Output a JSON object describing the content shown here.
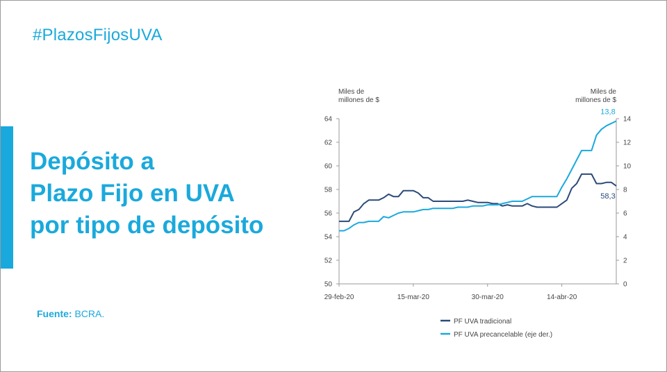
{
  "header": {
    "hashtag": "#PlazosFijosUVA"
  },
  "title": {
    "lines": [
      "Depósito a",
      "Plazo Fijo en UVA",
      "por tipo de depósito"
    ]
  },
  "source": {
    "label": "Fuente:",
    "value": " BCRA."
  },
  "colors": {
    "accent": "#1aa9dc",
    "dark_series": "#2a4a78",
    "light_series": "#1aa9dc"
  },
  "chart_data": {
    "type": "line",
    "xlabels": [
      "29-feb-20",
      "15-mar-20",
      "30-mar-20",
      "14-abr-20"
    ],
    "left_axis": {
      "label": [
        "Miles de",
        "millones de $"
      ],
      "range": [
        50,
        64
      ],
      "ticks": [
        50,
        52,
        54,
        56,
        58,
        60,
        62,
        64
      ]
    },
    "right_axis": {
      "label": [
        "Miles de",
        "millones de $"
      ],
      "range": [
        0,
        14
      ],
      "ticks": [
        0,
        2,
        4,
        6,
        8,
        10,
        12,
        14
      ]
    },
    "dates": [
      "2020-02-29",
      "2020-03-01",
      "2020-03-02",
      "2020-03-03",
      "2020-03-04",
      "2020-03-05",
      "2020-03-06",
      "2020-03-07",
      "2020-03-08",
      "2020-03-09",
      "2020-03-10",
      "2020-03-11",
      "2020-03-12",
      "2020-03-13",
      "2020-03-14",
      "2020-03-15",
      "2020-03-16",
      "2020-03-17",
      "2020-03-18",
      "2020-03-19",
      "2020-03-20",
      "2020-03-21",
      "2020-03-22",
      "2020-03-23",
      "2020-03-24",
      "2020-03-25",
      "2020-03-26",
      "2020-03-27",
      "2020-03-28",
      "2020-03-29",
      "2020-03-30",
      "2020-03-31",
      "2020-04-01",
      "2020-04-02",
      "2020-04-03",
      "2020-04-04",
      "2020-04-05",
      "2020-04-06",
      "2020-04-07",
      "2020-04-08",
      "2020-04-09",
      "2020-04-10",
      "2020-04-11",
      "2020-04-12",
      "2020-04-13",
      "2020-04-14",
      "2020-04-15",
      "2020-04-16",
      "2020-04-17",
      "2020-04-18",
      "2020-04-19",
      "2020-04-20",
      "2020-04-21",
      "2020-04-22",
      "2020-04-23",
      "2020-04-24",
      "2020-04-25"
    ],
    "series": [
      {
        "name": "PF UVA tradicional",
        "axis": "left",
        "values": [
          55.3,
          55.3,
          55.3,
          56.1,
          56.3,
          56.8,
          57.1,
          57.1,
          57.1,
          57.3,
          57.6,
          57.4,
          57.4,
          57.9,
          57.9,
          57.9,
          57.7,
          57.3,
          57.3,
          57.0,
          57.0,
          57.0,
          57.0,
          57.0,
          57.0,
          57.0,
          57.1,
          57.0,
          56.9,
          56.9,
          56.9,
          56.8,
          56.8,
          56.6,
          56.7,
          56.6,
          56.6,
          56.6,
          56.8,
          56.6,
          56.5,
          56.5,
          56.5,
          56.5,
          56.5,
          56.8,
          57.1,
          58.1,
          58.5,
          59.3,
          59.3,
          59.3,
          58.5,
          58.5,
          58.6,
          58.6,
          58.3
        ],
        "end_label": "58,3"
      },
      {
        "name": "PF UVA precancelable (eje der.)",
        "axis": "right",
        "values": [
          4.5,
          4.5,
          4.7,
          5.0,
          5.2,
          5.2,
          5.3,
          5.3,
          5.3,
          5.7,
          5.6,
          5.8,
          6.0,
          6.1,
          6.1,
          6.1,
          6.2,
          6.3,
          6.3,
          6.4,
          6.4,
          6.4,
          6.4,
          6.4,
          6.5,
          6.5,
          6.5,
          6.6,
          6.6,
          6.6,
          6.7,
          6.7,
          6.7,
          6.8,
          6.9,
          7.0,
          7.0,
          7.0,
          7.2,
          7.4,
          7.4,
          7.4,
          7.4,
          7.4,
          7.4,
          8.2,
          8.9,
          9.7,
          10.5,
          11.3,
          11.3,
          11.3,
          12.6,
          13.1,
          13.4,
          13.6,
          13.8
        ],
        "end_label": "13,8"
      }
    ],
    "grid": false,
    "legend_position": "bottom-center"
  }
}
